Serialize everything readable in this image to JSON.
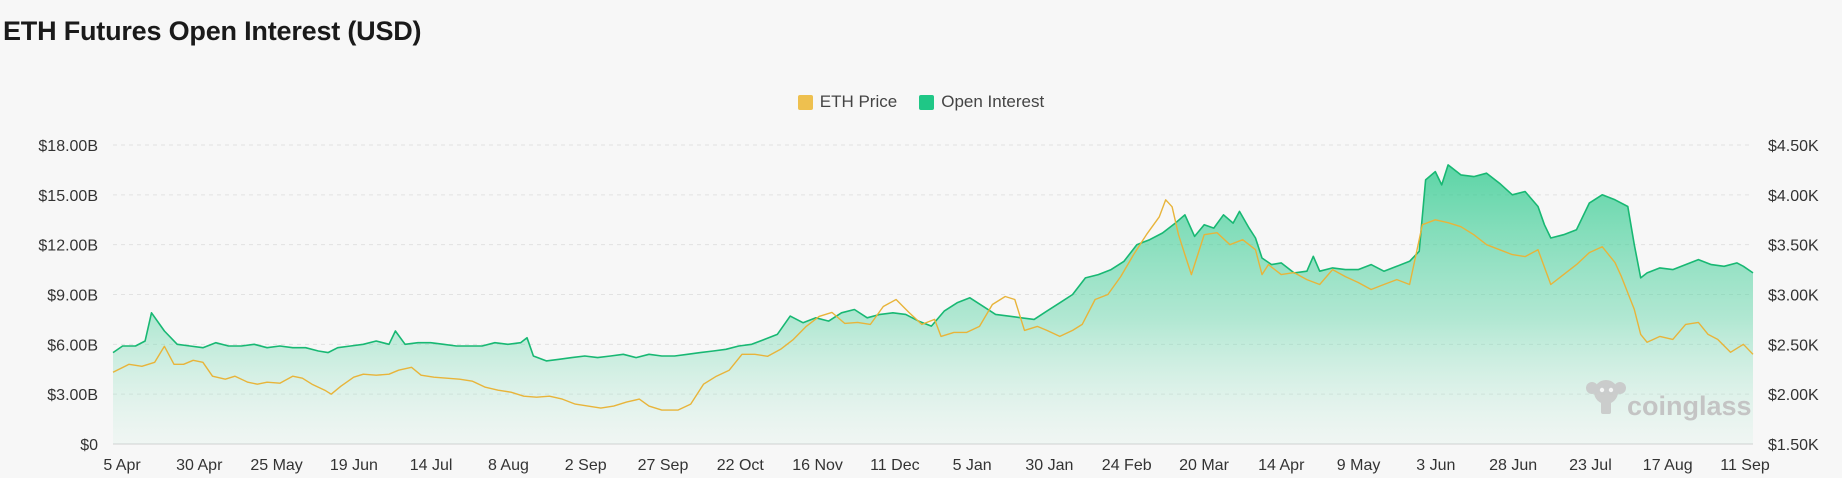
{
  "title": "ETH Futures Open Interest (USD)",
  "watermark": "coinglass",
  "colors": {
    "price": "#eec04f",
    "price_line": "#e8b43a",
    "oi": "#1fc786",
    "oi_line": "#18b873",
    "grid": "#e2e2e2"
  },
  "chart_data": {
    "type": "area",
    "title": "ETH Futures Open Interest (USD)",
    "legend_position": "top-center",
    "grid": true,
    "x_ticks": [
      "5 Apr",
      "30 Apr",
      "25 May",
      "19 Jun",
      "14 Jul",
      "8 Aug",
      "2 Sep",
      "27 Sep",
      "22 Oct",
      "16 Nov",
      "11 Dec",
      "5 Jan",
      "30 Jan",
      "24 Feb",
      "20 Mar",
      "14 Apr",
      "9 May",
      "3 Jun",
      "28 Jun",
      "23 Jul",
      "17 Aug",
      "11 Sep"
    ],
    "y_left": {
      "ticks": [
        "$0",
        "$3.00B",
        "$6.00B",
        "$9.00B",
        "$12.00B",
        "$15.00B",
        "$18.00B"
      ],
      "range": [
        0,
        18
      ]
    },
    "y_right": {
      "ticks": [
        "$1.50K",
        "$2.00K",
        "$2.50K",
        "$3.00K",
        "$3.50K",
        "$4.00K",
        "$4.50K"
      ],
      "range": [
        1.5,
        4.5
      ]
    },
    "series": [
      {
        "name": "ETH Price",
        "axis": "right",
        "points": [
          [
            0,
            2.22
          ],
          [
            5,
            2.3
          ],
          [
            9,
            2.28
          ],
          [
            13,
            2.32
          ],
          [
            16,
            2.48
          ],
          [
            19,
            2.3
          ],
          [
            22,
            2.3
          ],
          [
            25,
            2.34
          ],
          [
            28,
            2.32
          ],
          [
            31,
            2.18
          ],
          [
            35,
            2.15
          ],
          [
            38,
            2.18
          ],
          [
            42,
            2.12
          ],
          [
            45,
            2.1
          ],
          [
            48,
            2.12
          ],
          [
            52,
            2.11
          ],
          [
            56,
            2.18
          ],
          [
            59,
            2.16
          ],
          [
            62,
            2.1
          ],
          [
            66,
            2.04
          ],
          [
            68,
            2.0
          ],
          [
            71,
            2.08
          ],
          [
            75,
            2.17
          ],
          [
            78,
            2.2
          ],
          [
            82,
            2.19
          ],
          [
            86,
            2.2
          ],
          [
            89,
            2.24
          ],
          [
            93,
            2.27
          ],
          [
            96,
            2.19
          ],
          [
            100,
            2.17
          ],
          [
            104,
            2.16
          ],
          [
            108,
            2.15
          ],
          [
            112,
            2.13
          ],
          [
            116,
            2.07
          ],
          [
            120,
            2.04
          ],
          [
            124,
            2.02
          ],
          [
            128,
            1.98
          ],
          [
            132,
            1.97
          ],
          [
            136,
            1.98
          ],
          [
            140,
            1.95
          ],
          [
            144,
            1.9
          ],
          [
            148,
            1.88
          ],
          [
            152,
            1.86
          ],
          [
            156,
            1.88
          ],
          [
            160,
            1.92
          ],
          [
            164,
            1.95
          ],
          [
            167,
            1.88
          ],
          [
            171,
            1.84
          ],
          [
            176,
            1.84
          ],
          [
            180,
            1.9
          ],
          [
            184,
            2.1
          ],
          [
            188,
            2.18
          ],
          [
            192,
            2.24
          ],
          [
            196,
            2.4
          ],
          [
            200,
            2.4
          ],
          [
            204,
            2.38
          ],
          [
            208,
            2.45
          ],
          [
            212,
            2.55
          ],
          [
            216,
            2.68
          ],
          [
            220,
            2.78
          ],
          [
            224,
            2.82
          ],
          [
            228,
            2.71
          ],
          [
            232,
            2.72
          ],
          [
            236,
            2.7
          ],
          [
            240,
            2.88
          ],
          [
            244,
            2.95
          ],
          [
            248,
            2.82
          ],
          [
            252,
            2.7
          ],
          [
            256,
            2.75
          ],
          [
            258,
            2.58
          ],
          [
            262,
            2.62
          ],
          [
            266,
            2.62
          ],
          [
            270,
            2.68
          ],
          [
            274,
            2.9
          ],
          [
            278,
            2.98
          ],
          [
            281,
            2.95
          ],
          [
            284,
            2.64
          ],
          [
            288,
            2.68
          ],
          [
            291,
            2.64
          ],
          [
            295,
            2.58
          ],
          [
            299,
            2.64
          ],
          [
            302,
            2.7
          ],
          [
            306,
            2.95
          ],
          [
            310,
            3.0
          ],
          [
            314,
            3.18
          ],
          [
            318,
            3.4
          ],
          [
            322,
            3.6
          ],
          [
            326,
            3.78
          ],
          [
            328,
            3.95
          ],
          [
            330,
            3.88
          ],
          [
            332,
            3.6
          ],
          [
            334,
            3.4
          ],
          [
            336,
            3.2
          ],
          [
            338,
            3.4
          ],
          [
            340,
            3.6
          ],
          [
            344,
            3.62
          ],
          [
            348,
            3.5
          ],
          [
            352,
            3.55
          ],
          [
            356,
            3.45
          ],
          [
            358,
            3.2
          ],
          [
            360,
            3.3
          ],
          [
            364,
            3.2
          ],
          [
            368,
            3.22
          ],
          [
            372,
            3.15
          ],
          [
            376,
            3.1
          ],
          [
            380,
            3.25
          ],
          [
            384,
            3.18
          ],
          [
            388,
            3.12
          ],
          [
            392,
            3.05
          ],
          [
            396,
            3.1
          ],
          [
            400,
            3.15
          ],
          [
            404,
            3.1
          ],
          [
            408,
            3.7
          ],
          [
            412,
            3.75
          ],
          [
            416,
            3.72
          ],
          [
            420,
            3.68
          ],
          [
            424,
            3.6
          ],
          [
            428,
            3.5
          ],
          [
            432,
            3.45
          ],
          [
            436,
            3.4
          ],
          [
            440,
            3.38
          ],
          [
            444,
            3.45
          ],
          [
            448,
            3.1
          ],
          [
            452,
            3.2
          ],
          [
            456,
            3.3
          ],
          [
            460,
            3.42
          ],
          [
            464,
            3.48
          ],
          [
            468,
            3.32
          ],
          [
            470,
            3.18
          ],
          [
            474,
            2.85
          ],
          [
            476,
            2.6
          ],
          [
            478,
            2.52
          ],
          [
            482,
            2.58
          ],
          [
            486,
            2.55
          ],
          [
            490,
            2.7
          ],
          [
            494,
            2.72
          ],
          [
            497,
            2.6
          ],
          [
            500,
            2.55
          ],
          [
            504,
            2.42
          ],
          [
            508,
            2.5
          ],
          [
            511,
            2.4
          ]
        ]
      },
      {
        "name": "Open Interest",
        "axis": "left",
        "points": [
          [
            0,
            5.5
          ],
          [
            3,
            5.9
          ],
          [
            7,
            5.9
          ],
          [
            10,
            6.2
          ],
          [
            12,
            7.9
          ],
          [
            16,
            6.8
          ],
          [
            20,
            6.0
          ],
          [
            24,
            5.9
          ],
          [
            28,
            5.8
          ],
          [
            32,
            6.1
          ],
          [
            36,
            5.9
          ],
          [
            40,
            5.9
          ],
          [
            44,
            6.0
          ],
          [
            48,
            5.8
          ],
          [
            52,
            5.9
          ],
          [
            56,
            5.8
          ],
          [
            60,
            5.8
          ],
          [
            64,
            5.6
          ],
          [
            67,
            5.5
          ],
          [
            70,
            5.8
          ],
          [
            74,
            5.9
          ],
          [
            78,
            6.0
          ],
          [
            82,
            6.2
          ],
          [
            86,
            6.0
          ],
          [
            88,
            6.8
          ],
          [
            91,
            6.0
          ],
          [
            95,
            6.1
          ],
          [
            99,
            6.1
          ],
          [
            103,
            6.0
          ],
          [
            107,
            5.9
          ],
          [
            111,
            5.9
          ],
          [
            115,
            5.9
          ],
          [
            119,
            6.1
          ],
          [
            123,
            6.0
          ],
          [
            127,
            6.1
          ],
          [
            129,
            6.4
          ],
          [
            131,
            5.3
          ],
          [
            135,
            5.0
          ],
          [
            139,
            5.1
          ],
          [
            143,
            5.2
          ],
          [
            147,
            5.3
          ],
          [
            151,
            5.2
          ],
          [
            155,
            5.3
          ],
          [
            159,
            5.4
          ],
          [
            163,
            5.2
          ],
          [
            167,
            5.4
          ],
          [
            171,
            5.3
          ],
          [
            175,
            5.3
          ],
          [
            179,
            5.4
          ],
          [
            183,
            5.5
          ],
          [
            187,
            5.6
          ],
          [
            191,
            5.7
          ],
          [
            195,
            5.9
          ],
          [
            199,
            6.0
          ],
          [
            203,
            6.3
          ],
          [
            207,
            6.6
          ],
          [
            211,
            7.7
          ],
          [
            215,
            7.3
          ],
          [
            219,
            7.6
          ],
          [
            223,
            7.4
          ],
          [
            227,
            7.9
          ],
          [
            231,
            8.1
          ],
          [
            235,
            7.6
          ],
          [
            239,
            7.8
          ],
          [
            243,
            7.9
          ],
          [
            247,
            7.8
          ],
          [
            251,
            7.4
          ],
          [
            255,
            7.1
          ],
          [
            259,
            8.0
          ],
          [
            263,
            8.5
          ],
          [
            267,
            8.8
          ],
          [
            271,
            8.3
          ],
          [
            275,
            7.8
          ],
          [
            279,
            7.7
          ],
          [
            283,
            7.6
          ],
          [
            287,
            7.5
          ],
          [
            291,
            8.0
          ],
          [
            295,
            8.5
          ],
          [
            299,
            9.0
          ],
          [
            303,
            10.0
          ],
          [
            307,
            10.2
          ],
          [
            311,
            10.5
          ],
          [
            315,
            11.0
          ],
          [
            319,
            12.0
          ],
          [
            323,
            12.3
          ],
          [
            327,
            12.7
          ],
          [
            331,
            13.3
          ],
          [
            334,
            13.8
          ],
          [
            337,
            12.5
          ],
          [
            340,
            13.2
          ],
          [
            343,
            13.0
          ],
          [
            346,
            13.8
          ],
          [
            349,
            13.3
          ],
          [
            351,
            14.0
          ],
          [
            354,
            13.0
          ],
          [
            356,
            12.4
          ],
          [
            358,
            11.2
          ],
          [
            361,
            10.8
          ],
          [
            364,
            10.9
          ],
          [
            368,
            10.3
          ],
          [
            372,
            10.4
          ],
          [
            374,
            11.3
          ],
          [
            376,
            10.4
          ],
          [
            380,
            10.6
          ],
          [
            384,
            10.5
          ],
          [
            388,
            10.5
          ],
          [
            392,
            10.8
          ],
          [
            396,
            10.4
          ],
          [
            400,
            10.7
          ],
          [
            404,
            11.0
          ],
          [
            407,
            11.6
          ],
          [
            409,
            15.9
          ],
          [
            412,
            16.4
          ],
          [
            414,
            15.6
          ],
          [
            416,
            16.8
          ],
          [
            420,
            16.2
          ],
          [
            424,
            16.1
          ],
          [
            428,
            16.3
          ],
          [
            432,
            15.7
          ],
          [
            436,
            15.0
          ],
          [
            440,
            15.2
          ],
          [
            444,
            14.3
          ],
          [
            446,
            13.2
          ],
          [
            448,
            12.4
          ],
          [
            452,
            12.6
          ],
          [
            456,
            12.9
          ],
          [
            460,
            14.5
          ],
          [
            464,
            15.0
          ],
          [
            468,
            14.7
          ],
          [
            472,
            14.3
          ],
          [
            474,
            12.0
          ],
          [
            476,
            10.0
          ],
          [
            478,
            10.3
          ],
          [
            482,
            10.6
          ],
          [
            486,
            10.5
          ],
          [
            490,
            10.8
          ],
          [
            494,
            11.1
          ],
          [
            498,
            10.8
          ],
          [
            502,
            10.7
          ],
          [
            506,
            10.9
          ],
          [
            508,
            10.7
          ],
          [
            511,
            10.3
          ]
        ]
      }
    ]
  }
}
